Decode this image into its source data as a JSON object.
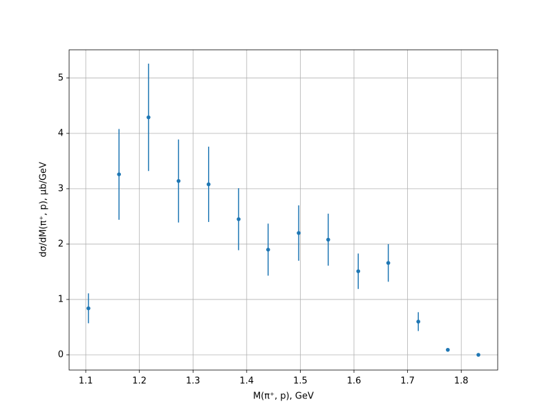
{
  "chart_data": {
    "type": "errorbar",
    "x_label": "M(π⁺, p), GeV",
    "y_label": "dσ/dM(π⁺, p), μb/GeV",
    "series": [
      {
        "color": "#1f77b4",
        "x": [
          1.105,
          1.162,
          1.217,
          1.273,
          1.329,
          1.385,
          1.44,
          1.497,
          1.552,
          1.608,
          1.664,
          1.72,
          1.775,
          1.832
        ],
        "values": [
          0.84,
          3.26,
          4.29,
          3.14,
          3.08,
          2.45,
          1.9,
          2.2,
          2.08,
          1.51,
          1.66,
          0.6,
          0.09,
          0.0
        ],
        "errors": [
          0.27,
          0.82,
          0.97,
          0.75,
          0.68,
          0.56,
          0.47,
          0.5,
          0.47,
          0.32,
          0.34,
          0.17,
          0.03,
          0.01
        ]
      }
    ],
    "xlim": [
      1.069,
      1.868
    ],
    "xticks": [
      1.1,
      1.2,
      1.3,
      1.4,
      1.5,
      1.6,
      1.7,
      1.8
    ],
    "ylim": [
      -0.275,
      5.51
    ],
    "yticks": [
      0,
      1,
      2,
      3,
      4,
      5
    ],
    "grid": true
  }
}
